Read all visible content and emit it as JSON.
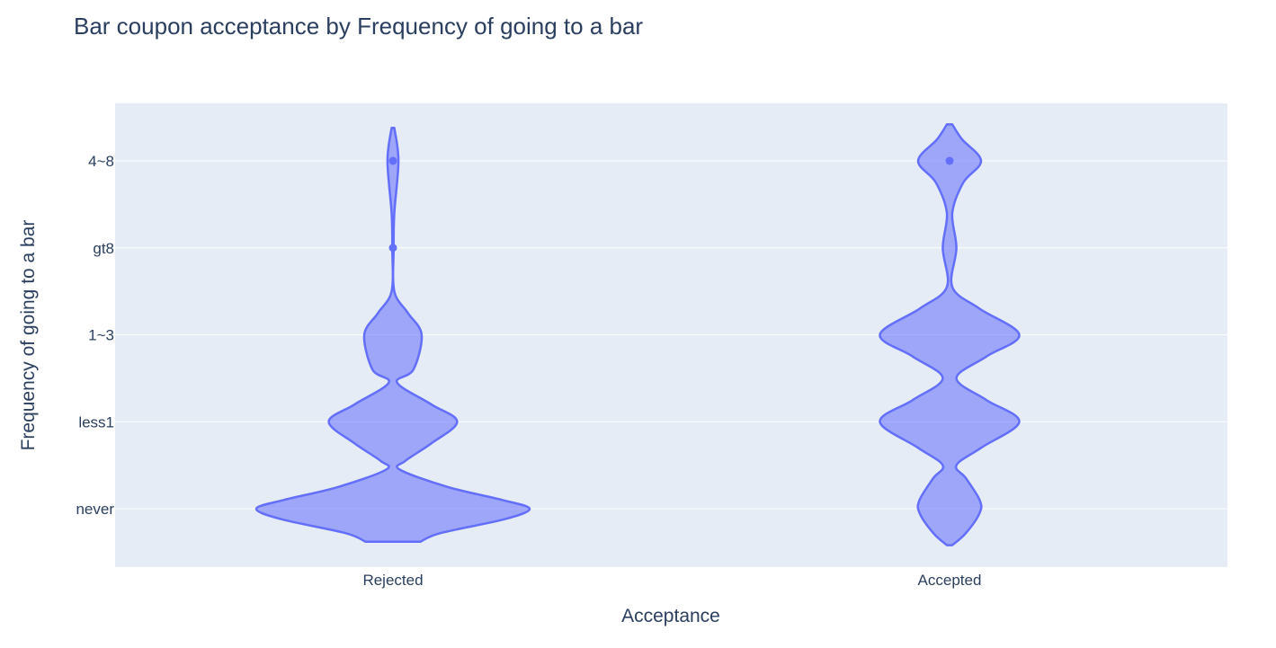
{
  "chart_data": {
    "type": "violin",
    "title": "Bar coupon acceptance by Frequency of going to a bar",
    "xlabel": "Acceptance",
    "ylabel": "Frequency of going to a bar",
    "categories": [
      "Rejected",
      "Accepted"
    ],
    "y_categories": [
      "never",
      "less1",
      "1~3",
      "gt8",
      "4~8"
    ],
    "grid": true,
    "colors": {
      "fill": "#636efa",
      "fill_opacity": 0.55,
      "plot_bg": "#e5ecf6",
      "grid": "#ffffff",
      "text": "#2a3f5f"
    },
    "series": [
      {
        "category": "Rejected",
        "median": "never",
        "outlier_points": [
          "4~8",
          "gt8"
        ],
        "density": [
          {
            "y": -0.38,
            "w": 0.2
          },
          {
            "y": -0.28,
            "w": 0.35
          },
          {
            "y": -0.12,
            "w": 0.82
          },
          {
            "y": 0.0,
            "w": 1.0
          },
          {
            "y": 0.1,
            "w": 0.8
          },
          {
            "y": 0.25,
            "w": 0.4
          },
          {
            "y": 0.45,
            "w": 0.05
          },
          {
            "y": 0.55,
            "w": 0.09
          },
          {
            "y": 0.75,
            "w": 0.28
          },
          {
            "y": 1.0,
            "w": 0.47
          },
          {
            "y": 1.2,
            "w": 0.28
          },
          {
            "y": 1.45,
            "w": 0.03
          },
          {
            "y": 1.6,
            "w": 0.15
          },
          {
            "y": 2.0,
            "w": 0.21
          },
          {
            "y": 2.25,
            "w": 0.11
          },
          {
            "y": 2.5,
            "w": 0.01
          },
          {
            "y": 3.0,
            "w": 0.005
          },
          {
            "y": 3.4,
            "w": 0.01
          },
          {
            "y": 4.0,
            "w": 0.04
          },
          {
            "y": 4.38,
            "w": 0.01
          }
        ]
      },
      {
        "category": "Accepted",
        "median": "less1",
        "outlier_points": [
          "4~8"
        ],
        "density": [
          {
            "y": -0.42,
            "w": 0.02
          },
          {
            "y": -0.28,
            "w": 0.12
          },
          {
            "y": -0.05,
            "w": 0.22
          },
          {
            "y": 0.1,
            "w": 0.22
          },
          {
            "y": 0.35,
            "w": 0.12
          },
          {
            "y": 0.5,
            "w": 0.05
          },
          {
            "y": 0.7,
            "w": 0.23
          },
          {
            "y": 1.0,
            "w": 0.51
          },
          {
            "y": 1.25,
            "w": 0.27
          },
          {
            "y": 1.5,
            "w": 0.05
          },
          {
            "y": 1.75,
            "w": 0.27
          },
          {
            "y": 2.0,
            "w": 0.51
          },
          {
            "y": 2.3,
            "w": 0.22
          },
          {
            "y": 2.55,
            "w": 0.02
          },
          {
            "y": 3.0,
            "w": 0.05
          },
          {
            "y": 3.4,
            "w": 0.02
          },
          {
            "y": 3.75,
            "w": 0.1
          },
          {
            "y": 4.0,
            "w": 0.23
          },
          {
            "y": 4.25,
            "w": 0.09
          },
          {
            "y": 4.42,
            "w": 0.02
          }
        ]
      }
    ]
  }
}
